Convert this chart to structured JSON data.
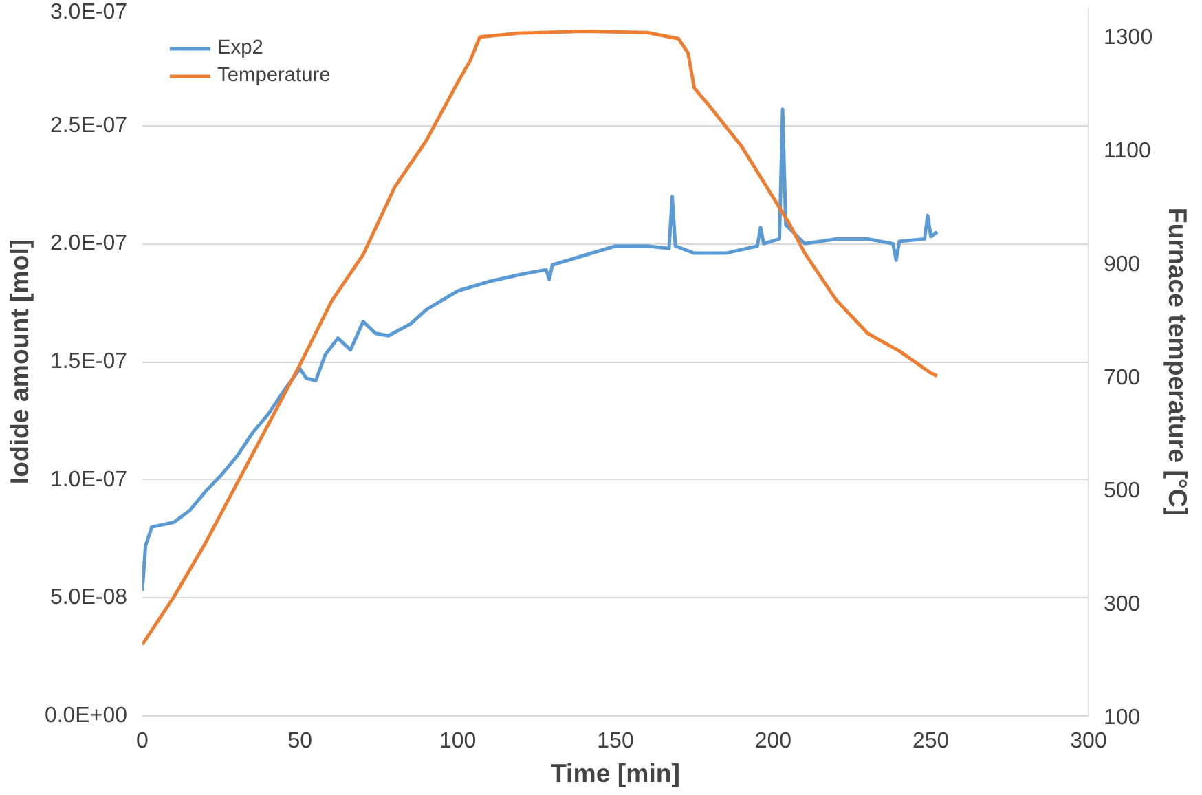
{
  "chart_data": {
    "type": "line",
    "xlabel": "Time [min]",
    "ylabel": "Iodide amount [mol]",
    "y2label": "Furnace temperature [°C]",
    "xlim": [
      0,
      300
    ],
    "xticks": [
      0,
      50,
      100,
      150,
      200,
      250,
      300
    ],
    "ylim": [
      0,
      3e-07
    ],
    "yticks": [
      {
        "value": 0,
        "label": "0.0E+00"
      },
      {
        "value": 5e-08,
        "label": "5.0E-08"
      },
      {
        "value": 1e-07,
        "label": "1.0E-07"
      },
      {
        "value": 1.5e-07,
        "label": "1.5E-07"
      },
      {
        "value": 2e-07,
        "label": "2.0E-07"
      },
      {
        "value": 2.5e-07,
        "label": "2.5E-07"
      },
      {
        "value": 3e-07,
        "label": "3.0E-07"
      }
    ],
    "y2lim": [
      100,
      1350
    ],
    "y2ticks": [
      100,
      300,
      500,
      700,
      900,
      1100,
      1300
    ],
    "grid": "y",
    "legend": "top left",
    "marker": "none",
    "line_style": "solid",
    "series": [
      {
        "name": "Exp2",
        "color": "#5b9bd5",
        "x": [
          0,
          1,
          3,
          10,
          15,
          20,
          25,
          30,
          35,
          40,
          45,
          50,
          52,
          55,
          58,
          62,
          66,
          70,
          74,
          78,
          85,
          90,
          100,
          110,
          120,
          128,
          129,
          130,
          140,
          150,
          160,
          167,
          168,
          169,
          175,
          185,
          195,
          196,
          197,
          202,
          203,
          204,
          210,
          220,
          230,
          238,
          239,
          240,
          248,
          249,
          250,
          252
        ],
        "values": [
          5.3e-08,
          7.2e-08,
          8e-08,
          8.2e-08,
          8.7e-08,
          9.5e-08,
          1.02e-07,
          1.1e-07,
          1.2e-07,
          1.28e-07,
          1.38e-07,
          1.47e-07,
          1.43e-07,
          1.42e-07,
          1.53e-07,
          1.6e-07,
          1.55e-07,
          1.67e-07,
          1.62e-07,
          1.61e-07,
          1.66e-07,
          1.72e-07,
          1.8e-07,
          1.84e-07,
          1.87e-07,
          1.89e-07,
          1.85e-07,
          1.91e-07,
          1.95e-07,
          1.99e-07,
          1.99e-07,
          1.98e-07,
          2.2e-07,
          1.99e-07,
          1.96e-07,
          1.96e-07,
          1.99e-07,
          2.07e-07,
          2e-07,
          2.02e-07,
          2.57e-07,
          2.08e-07,
          2e-07,
          2.02e-07,
          2.02e-07,
          2e-07,
          1.93e-07,
          2.01e-07,
          2.02e-07,
          2.12e-07,
          2.03e-07,
          2.05e-07
        ]
      },
      {
        "name": "Temperature",
        "color": "#ed7d31",
        "axis": "y2",
        "x": [
          0,
          10,
          20,
          30,
          40,
          50,
          60,
          70,
          80,
          90,
          100,
          104,
          107,
          120,
          140,
          160,
          170,
          173,
          175,
          180,
          190,
          200,
          205,
          210,
          220,
          230,
          240,
          250,
          252
        ],
        "values": [
          226,
          310,
          405,
          510,
          615,
          720,
          832,
          914,
          1033,
          1115,
          1218,
          1257,
          1298,
          1305,
          1308,
          1306,
          1295,
          1270,
          1208,
          1175,
          1105,
          1015,
          970,
          917,
          834,
          775,
          744,
          705,
          700
        ]
      }
    ]
  }
}
